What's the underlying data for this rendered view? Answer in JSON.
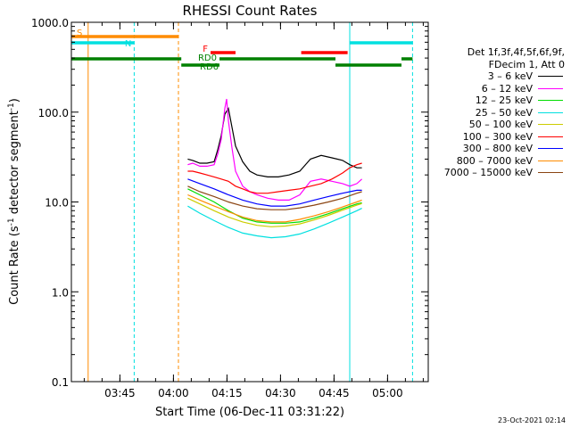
{
  "chart_data": {
    "type": "line",
    "title": "RHESSI Count Rates",
    "xlabel": "Start Time (06-Dec-11 03:31:22)",
    "ylabel": "Count Rate (s",
    "ylabel_sup": "-1",
    "ylabel_mid": " detector segment",
    "ylabel_sup2": "-1",
    "ylabel_end": ")",
    "x_unit": "minutes since 03:31:22",
    "xlim": [
      0,
      100
    ],
    "ylim": [
      0.1,
      1000
    ],
    "y_scale": "log",
    "y_ticks": [
      {
        "v": 1000,
        "label": "1000.0"
      },
      {
        "v": 100,
        "label": "100.0"
      },
      {
        "v": 10,
        "label": "10.0"
      },
      {
        "v": 1,
        "label": "1.0"
      },
      {
        "v": 0.1,
        "label": "0.1"
      }
    ],
    "x_ticks": [
      {
        "t": 13.6,
        "label": "03:45"
      },
      {
        "t": 28.6,
        "label": "04:00"
      },
      {
        "t": 43.6,
        "label": "04:15"
      },
      {
        "t": 58.6,
        "label": "04:30"
      },
      {
        "t": 73.6,
        "label": "04:45"
      },
      {
        "t": 88.6,
        "label": "05:00"
      }
    ],
    "legend": {
      "placement": "right",
      "header": [
        "Det 1f,3f,4f,5f,6f,9f,",
        "FDecim 1, Att 0"
      ],
      "entries": [
        {
          "label": "3 – 6 keV",
          "color": "#000000"
        },
        {
          "label": "6 – 12 keV",
          "color": "#ff00ff"
        },
        {
          "label": "12 – 25 keV",
          "color": "#00dd00"
        },
        {
          "label": "25 – 50 keV",
          "color": "#00e0e0"
        },
        {
          "label": "50 – 100 keV",
          "color": "#cccc00"
        },
        {
          "label": "100 – 300 keV",
          "color": "#ff0000"
        },
        {
          "label": "300 – 800 keV",
          "color": "#0000ff"
        },
        {
          "label": "800 – 7000 keV",
          "color": "#ff8c00"
        },
        {
          "label": "7000 – 15000 keV",
          "color": "#8b4513"
        }
      ]
    },
    "series": [
      {
        "name": "3 – 6 keV",
        "color": "#000000",
        "x": [
          32.6,
          34,
          36,
          38,
          40,
          41,
          42,
          43,
          44,
          45,
          46,
          48,
          50,
          52,
          55,
          58,
          61,
          64,
          67,
          70,
          73,
          76,
          78,
          80,
          81.4
        ],
        "y": [
          30,
          29,
          27,
          27,
          28,
          38,
          55,
          95,
          110,
          68,
          42,
          28,
          22,
          20,
          19,
          19,
          20,
          22,
          30,
          33,
          31,
          29,
          26,
          24,
          24
        ]
      },
      {
        "name": "6 – 12 keV",
        "color": "#ff00ff",
        "x": [
          32.6,
          34,
          36,
          38,
          40,
          41,
          42,
          43,
          43.5,
          44,
          45,
          46,
          48,
          50,
          52,
          55,
          58,
          61,
          64,
          67,
          70,
          73,
          76,
          78,
          80,
          81.4
        ],
        "y": [
          26,
          27,
          25,
          25,
          26,
          34,
          50,
          110,
          140,
          80,
          40,
          22,
          15,
          13,
          12,
          11,
          10.5,
          10.5,
          12,
          17,
          18,
          17,
          16,
          15,
          16,
          18
        ]
      },
      {
        "name": "12 – 25 keV",
        "color": "#00dd00",
        "x": [
          32.6,
          36,
          40,
          44,
          48,
          52,
          56,
          60,
          64,
          68,
          72,
          76,
          80,
          81.4
        ],
        "y": [
          14,
          12,
          10,
          8,
          6.6,
          6.0,
          5.8,
          5.8,
          6.0,
          6.6,
          7.4,
          8.4,
          9.5,
          9.8
        ]
      },
      {
        "name": "25 – 50 keV",
        "color": "#00e0e0",
        "x": [
          32.6,
          36,
          40,
          44,
          48,
          52,
          56,
          60,
          64,
          68,
          72,
          76,
          80,
          81.4
        ],
        "y": [
          9,
          7.5,
          6.2,
          5.2,
          4.5,
          4.2,
          4.0,
          4.1,
          4.4,
          5.0,
          5.8,
          6.8,
          8.0,
          8.5
        ]
      },
      {
        "name": "50 – 100 keV",
        "color": "#cccc00",
        "x": [
          32.6,
          36,
          40,
          44,
          48,
          52,
          56,
          60,
          64,
          68,
          72,
          76,
          80,
          81.4
        ],
        "y": [
          11,
          9.5,
          8.0,
          6.8,
          6.0,
          5.5,
          5.3,
          5.4,
          5.7,
          6.3,
          7.1,
          8.1,
          9.2,
          9.6
        ]
      },
      {
        "name": "100 – 300 keV",
        "color": "#ff0000",
        "x": [
          32.6,
          34,
          36,
          38,
          40,
          42,
          44,
          46,
          48,
          50,
          52,
          55,
          58,
          61,
          64,
          67,
          70,
          73,
          76,
          78,
          80,
          81.4
        ],
        "y": [
          22,
          22,
          21,
          20,
          19,
          18,
          17,
          15,
          14,
          13,
          12.5,
          12.5,
          13,
          13.5,
          14,
          15,
          16,
          18,
          21,
          24,
          26,
          27
        ]
      },
      {
        "name": "300 – 800 keV",
        "color": "#0000ff",
        "x": [
          32.6,
          36,
          40,
          44,
          48,
          52,
          56,
          60,
          64,
          68,
          72,
          76,
          80,
          81.4
        ],
        "y": [
          18,
          16,
          14,
          12,
          10.5,
          9.5,
          9.0,
          9.0,
          9.5,
          10.5,
          11.5,
          12.5,
          13.5,
          13.5
        ]
      },
      {
        "name": "800 – 7000 keV",
        "color": "#ff8c00",
        "x": [
          32.6,
          36,
          40,
          44,
          48,
          52,
          56,
          60,
          64,
          68,
          72,
          76,
          80,
          81.4
        ],
        "y": [
          12,
          10.5,
          9.0,
          7.8,
          6.8,
          6.2,
          6.0,
          6.0,
          6.4,
          7.0,
          7.8,
          8.8,
          10,
          10.5
        ]
      },
      {
        "name": "7000 – 15000 keV",
        "color": "#8b4513",
        "x": [
          32.6,
          36,
          40,
          44,
          48,
          52,
          56,
          60,
          64,
          68,
          72,
          76,
          80,
          81.4
        ],
        "y": [
          15,
          13,
          11.5,
          10,
          9.0,
          8.4,
          8.2,
          8.2,
          8.6,
          9.2,
          10,
          11,
          12.5,
          13
        ]
      }
    ],
    "markers": {
      "vertical_lines": [
        {
          "t": 0,
          "color": "#00e0e0",
          "dash": false
        },
        {
          "t": 4.7,
          "color": "#ff8c00",
          "dash": false
        },
        {
          "t": 17.6,
          "color": "#00e0e0",
          "dash": true
        },
        {
          "t": 30.0,
          "color": "#ff8c00",
          "dash": true
        },
        {
          "t": 78.0,
          "color": "#00e0e0",
          "dash": false
        },
        {
          "t": 95.6,
          "color": "#00e0e0",
          "dash": true
        }
      ],
      "bars": [
        {
          "label": "S",
          "color": "#ff8c00",
          "t0": 0,
          "t1": 30.0,
          "y": 1.29
        },
        {
          "label": "N",
          "color": "#00e0e0",
          "t0": 0,
          "t1": 17.6,
          "y": 1.08
        },
        {
          "label": "",
          "color": "#00e0e0",
          "t0": 78.0,
          "t1": 95.6,
          "y": 1.08
        },
        {
          "label": "F",
          "color": "#ff0000",
          "t0": 39.0,
          "t1": 46.0,
          "y": 0.91
        },
        {
          "label": "",
          "color": "#ff0000",
          "t0": 64.4,
          "t1": 77.4,
          "y": 0.91
        },
        {
          "label": "",
          "color": "#008000",
          "t0": 0,
          "t1": 30.8,
          "y": 0.82
        },
        {
          "label": "RD0",
          "color": "#008000",
          "t0": 41.5,
          "t1": 74.0,
          "y": 0.82
        },
        {
          "label": "",
          "color": "#008000",
          "t0": 92.5,
          "t1": 95.6,
          "y": 0.82
        },
        {
          "label": "RD6",
          "color": "#008000",
          "t0": 30.8,
          "t1": 41.5,
          "y": 0.74
        },
        {
          "label": "",
          "color": "#008000",
          "t0": 74.0,
          "t1": 92.5,
          "y": 0.74
        }
      ]
    }
  },
  "timestamp": "23-Oct-2021 02:14"
}
